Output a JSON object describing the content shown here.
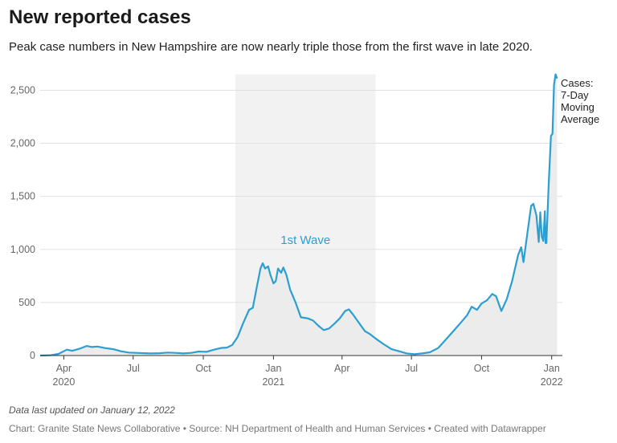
{
  "title": "New reported cases",
  "subtitle": "Peak case numbers in New Hampshire are now nearly triple those from the first wave in late 2020.",
  "note": "Data last updated on January 12, 2022",
  "footer": "Chart: Granite State News Collaborative • Source: NH Department of Health and Human Services • Created with Datawrapper",
  "colors": {
    "line": "#2a9fd0",
    "area": "#ececec",
    "highlight": "#f2f2f2"
  },
  "chart_data": {
    "type": "area",
    "title": "New reported cases",
    "ylabel": "",
    "xlabel": "",
    "ylim": [
      0,
      2700
    ],
    "yticks": [
      0,
      500,
      1000,
      1500,
      2000,
      2500
    ],
    "ytick_labels": [
      "0",
      "500",
      "1,000",
      "1,500",
      "2,000",
      "2,500"
    ],
    "xlim": [
      "2020-03-01",
      "2022-01-15"
    ],
    "xticks": [
      {
        "date": "2020-04-01",
        "label": "Apr",
        "sub": "2020"
      },
      {
        "date": "2020-07-01",
        "label": "Jul",
        "sub": ""
      },
      {
        "date": "2020-10-01",
        "label": "Oct",
        "sub": ""
      },
      {
        "date": "2021-01-01",
        "label": "Jan",
        "sub": "2021"
      },
      {
        "date": "2021-04-01",
        "label": "Apr",
        "sub": ""
      },
      {
        "date": "2021-07-01",
        "label": "Jul",
        "sub": ""
      },
      {
        "date": "2021-10-01",
        "label": "Oct",
        "sub": ""
      },
      {
        "date": "2022-01-01",
        "label": "Jan",
        "sub": "2022"
      }
    ],
    "highlight_range": {
      "start": "2020-11-12",
      "end": "2021-05-15",
      "label": "1st Wave"
    },
    "series": [
      {
        "name": "Cases: 7-Day Moving Average",
        "points": [
          [
            "2020-03-01",
            0
          ],
          [
            "2020-03-15",
            3
          ],
          [
            "2020-03-25",
            15
          ],
          [
            "2020-04-05",
            55
          ],
          [
            "2020-04-12",
            45
          ],
          [
            "2020-04-22",
            65
          ],
          [
            "2020-05-01",
            90
          ],
          [
            "2020-05-08",
            80
          ],
          [
            "2020-05-15",
            85
          ],
          [
            "2020-05-25",
            70
          ],
          [
            "2020-06-05",
            60
          ],
          [
            "2020-06-15",
            40
          ],
          [
            "2020-06-25",
            28
          ],
          [
            "2020-07-05",
            25
          ],
          [
            "2020-07-15",
            22
          ],
          [
            "2020-07-25",
            20
          ],
          [
            "2020-08-05",
            22
          ],
          [
            "2020-08-15",
            28
          ],
          [
            "2020-08-25",
            25
          ],
          [
            "2020-09-05",
            20
          ],
          [
            "2020-09-15",
            25
          ],
          [
            "2020-09-25",
            38
          ],
          [
            "2020-10-05",
            35
          ],
          [
            "2020-10-15",
            55
          ],
          [
            "2020-10-25",
            72
          ],
          [
            "2020-11-01",
            75
          ],
          [
            "2020-11-08",
            100
          ],
          [
            "2020-11-15",
            175
          ],
          [
            "2020-11-22",
            300
          ],
          [
            "2020-11-30",
            430
          ],
          [
            "2020-12-05",
            450
          ],
          [
            "2020-12-10",
            640
          ],
          [
            "2020-12-15",
            820
          ],
          [
            "2020-12-18",
            870
          ],
          [
            "2020-12-21",
            820
          ],
          [
            "2020-12-25",
            840
          ],
          [
            "2020-12-28",
            760
          ],
          [
            "2021-01-01",
            680
          ],
          [
            "2021-01-04",
            700
          ],
          [
            "2021-01-07",
            820
          ],
          [
            "2021-01-11",
            780
          ],
          [
            "2021-01-14",
            830
          ],
          [
            "2021-01-18",
            760
          ],
          [
            "2021-01-23",
            620
          ],
          [
            "2021-01-30",
            500
          ],
          [
            "2021-02-06",
            360
          ],
          [
            "2021-02-15",
            350
          ],
          [
            "2021-02-22",
            330
          ],
          [
            "2021-03-01",
            280
          ],
          [
            "2021-03-08",
            240
          ],
          [
            "2021-03-15",
            255
          ],
          [
            "2021-03-22",
            300
          ],
          [
            "2021-03-29",
            350
          ],
          [
            "2021-04-05",
            420
          ],
          [
            "2021-04-10",
            435
          ],
          [
            "2021-04-15",
            390
          ],
          [
            "2021-04-22",
            320
          ],
          [
            "2021-05-01",
            230
          ],
          [
            "2021-05-08",
            200
          ],
          [
            "2021-05-15",
            160
          ],
          [
            "2021-05-25",
            110
          ],
          [
            "2021-06-05",
            60
          ],
          [
            "2021-06-15",
            40
          ],
          [
            "2021-06-25",
            20
          ],
          [
            "2021-07-05",
            12
          ],
          [
            "2021-07-15",
            20
          ],
          [
            "2021-07-25",
            30
          ],
          [
            "2021-08-05",
            70
          ],
          [
            "2021-08-15",
            150
          ],
          [
            "2021-08-25",
            230
          ],
          [
            "2021-09-05",
            320
          ],
          [
            "2021-09-12",
            380
          ],
          [
            "2021-09-18",
            460
          ],
          [
            "2021-09-25",
            430
          ],
          [
            "2021-10-01",
            490
          ],
          [
            "2021-10-08",
            520
          ],
          [
            "2021-10-15",
            580
          ],
          [
            "2021-10-20",
            560
          ],
          [
            "2021-10-27",
            420
          ],
          [
            "2021-11-03",
            530
          ],
          [
            "2021-11-10",
            700
          ],
          [
            "2021-11-18",
            950
          ],
          [
            "2021-11-22",
            1020
          ],
          [
            "2021-11-25",
            880
          ],
          [
            "2021-11-30",
            1150
          ],
          [
            "2021-12-05",
            1410
          ],
          [
            "2021-12-08",
            1430
          ],
          [
            "2021-12-12",
            1320
          ],
          [
            "2021-12-15",
            1070
          ],
          [
            "2021-12-17",
            1350
          ],
          [
            "2021-12-19",
            1120
          ],
          [
            "2021-12-21",
            1080
          ],
          [
            "2021-12-23",
            1360
          ],
          [
            "2021-12-24",
            1060
          ],
          [
            "2021-12-25",
            1060
          ],
          [
            "2021-12-28",
            1600
          ],
          [
            "2021-12-31",
            2070
          ],
          [
            "2022-01-02",
            2090
          ],
          [
            "2022-01-04",
            2550
          ],
          [
            "2022-01-06",
            2650
          ],
          [
            "2022-01-08",
            2610
          ]
        ]
      }
    ]
  }
}
